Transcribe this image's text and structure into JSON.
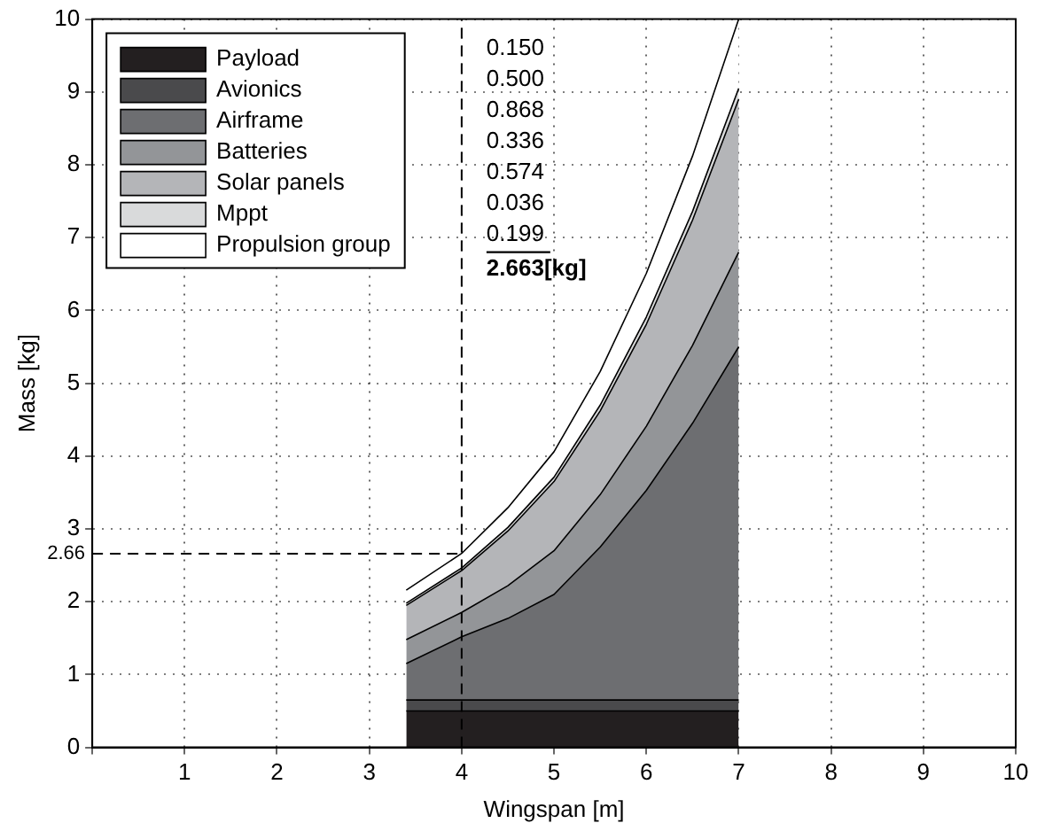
{
  "chart_data": {
    "type": "area",
    "stacked": true,
    "xlabel": "Wingspan [m]",
    "ylabel": "Mass [kg]",
    "x": [
      3.4,
      4,
      4.5,
      5,
      5.5,
      6,
      6.5,
      7
    ],
    "series": [
      {
        "name": "Payload",
        "color": "#231f20",
        "values": [
          0.5,
          0.5,
          0.5,
          0.5,
          0.5,
          0.5,
          0.5,
          0.5
        ]
      },
      {
        "name": "Avionics",
        "color": "#4a4a4c",
        "values": [
          0.15,
          0.15,
          0.15,
          0.15,
          0.15,
          0.15,
          0.15,
          0.15
        ]
      },
      {
        "name": "Airframe",
        "color": "#6d6e71",
        "values": [
          0.5,
          0.868,
          1.12,
          1.45,
          2.1,
          2.88,
          3.8,
          4.85
        ]
      },
      {
        "name": "Batteries",
        "color": "#939598",
        "values": [
          0.33,
          0.336,
          0.45,
          0.6,
          0.72,
          0.88,
          1.07,
          1.3
        ]
      },
      {
        "name": "Solar panels",
        "color": "#b4b5b8",
        "values": [
          0.47,
          0.574,
          0.75,
          0.95,
          1.15,
          1.4,
          1.72,
          2.1
        ]
      },
      {
        "name": "Mppt",
        "color": "#d9dadb",
        "values": [
          0.03,
          0.036,
          0.05,
          0.06,
          0.08,
          0.1,
          0.12,
          0.15
        ]
      },
      {
        "name": "Propulsion group",
        "color": "#ffffff",
        "values": [
          0.18,
          0.199,
          0.27,
          0.35,
          0.46,
          0.6,
          0.76,
          0.95
        ]
      }
    ],
    "xlim": [
      0,
      10
    ],
    "xticks": [
      {
        "value": 0,
        "label": null
      },
      1,
      2,
      3,
      4,
      5,
      6,
      7,
      8,
      9,
      10
    ],
    "ylim": [
      0,
      10
    ],
    "yticks": [
      0,
      1,
      2,
      3,
      4,
      5,
      6,
      7,
      8,
      9,
      10
    ],
    "grid": true,
    "legend": "top left",
    "ref_lines": [
      {
        "axis": "x",
        "value": 4,
        "label": null,
        "line_style": "dashed",
        "color": "#000000"
      },
      {
        "axis": "y",
        "value": 2.66,
        "label": "2.66",
        "line_style": "dashed",
        "color": "#000000"
      }
    ],
    "annotations": [
      "0.150",
      "0.500",
      "0.868",
      "0.336",
      "0.574",
      "0.036",
      "0.199",
      "2.663[kg]"
    ]
  }
}
